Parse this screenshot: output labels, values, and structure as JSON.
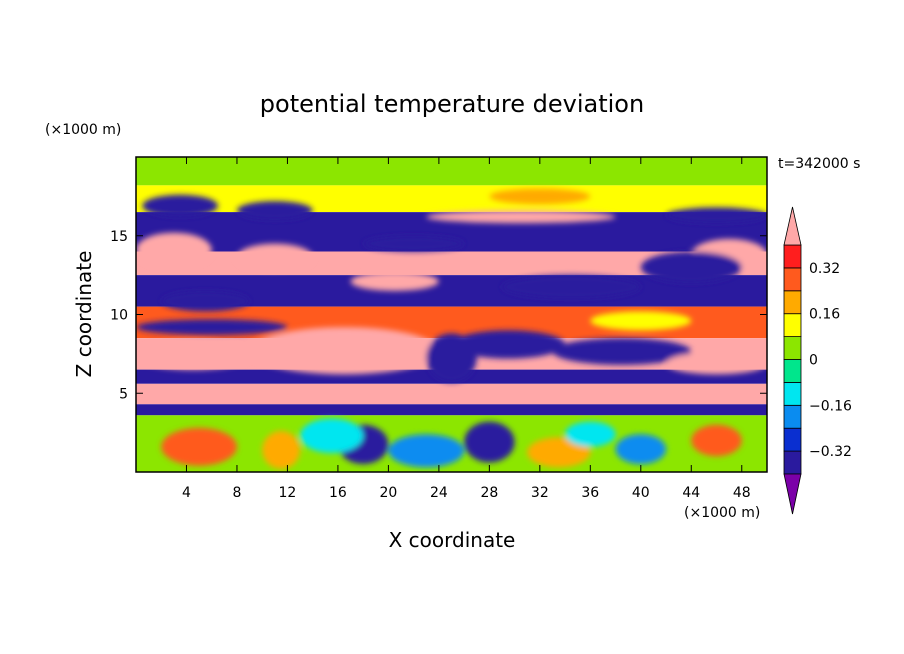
{
  "chart_data": {
    "type": "heatmap",
    "title": "potential temperature deviation",
    "time_label": "t=342000 s",
    "xlabel": "X coordinate",
    "ylabel": "Z coordinate",
    "x_unit": "(×1000 m)",
    "y_unit": "(×1000 m)",
    "xlim": [
      0,
      50
    ],
    "ylim": [
      0,
      20
    ],
    "x_ticks": [
      4,
      8,
      12,
      16,
      20,
      24,
      28,
      32,
      36,
      40,
      44,
      48
    ],
    "y_ticks": [
      5,
      10,
      15
    ],
    "colorbar": {
      "ticks": [
        0.32,
        0.16,
        0,
        -0.16,
        -0.32
      ],
      "tick_labels": [
        "0.32",
        "0.16",
        "0",
        "−0.16",
        "−0.32"
      ],
      "levels": [
        -0.4,
        -0.32,
        -0.24,
        -0.16,
        -0.08,
        0,
        0.08,
        0.16,
        0.24,
        0.32,
        0.4
      ],
      "colors": [
        "#7b00a8",
        "#2a1a9e",
        "#0a2fd0",
        "#0a8cf0",
        "#00e6f0",
        "#00e68c",
        "#8ce600",
        "#ffff00",
        "#ffaa00",
        "#ff5a1e",
        "#ff1e1e",
        "#ffa8a8"
      ],
      "extend": "both"
    },
    "bands": [
      {
        "z": [
          18.2,
          20.0
        ],
        "value": 0.05
      },
      {
        "z": [
          16.5,
          18.2
        ],
        "value": 0.12
      },
      {
        "z": [
          14.0,
          16.5
        ],
        "value": -0.35
      },
      {
        "z": [
          12.5,
          14.0
        ],
        "value": 0.42
      },
      {
        "z": [
          10.5,
          12.5
        ],
        "value": -0.33
      },
      {
        "z": [
          8.5,
          10.5
        ],
        "value": 0.25
      },
      {
        "z": [
          6.5,
          8.5
        ],
        "value": 0.42
      },
      {
        "z": [
          5.6,
          6.5
        ],
        "value": -0.36
      },
      {
        "z": [
          4.3,
          5.6
        ],
        "value": 0.42
      },
      {
        "z": [
          3.6,
          4.3
        ],
        "value": -0.38
      },
      {
        "z": [
          0.0,
          3.6
        ],
        "value": 0.02
      }
    ],
    "patches": [
      {
        "x": [
          0.5,
          6.5
        ],
        "z": [
          16.2,
          17.6
        ],
        "value": -0.36
      },
      {
        "x": [
          8,
          14
        ],
        "z": [
          16.0,
          17.2
        ],
        "value": -0.36
      },
      {
        "x": [
          23,
          38
        ],
        "z": [
          15.8,
          16.6
        ],
        "value": 0.42
      },
      {
        "x": [
          42,
          50
        ],
        "z": [
          15.8,
          16.8
        ],
        "value": -0.36
      },
      {
        "x": [
          28,
          36
        ],
        "z": [
          17.0,
          18.0
        ],
        "value": 0.2
      },
      {
        "x": [
          0,
          6
        ],
        "z": [
          13.0,
          15.2
        ],
        "value": 0.42
      },
      {
        "x": [
          8,
          14
        ],
        "z": [
          12.8,
          14.5
        ],
        "value": 0.42
      },
      {
        "x": [
          44,
          50
        ],
        "z": [
          12.8,
          14.8
        ],
        "value": 0.42
      },
      {
        "x": [
          18,
          26
        ],
        "z": [
          14.0,
          15.0
        ],
        "value": -0.36
      },
      {
        "x": [
          29,
          40
        ],
        "z": [
          11.0,
          12.5
        ],
        "value": -0.36
      },
      {
        "x": [
          40,
          48
        ],
        "z": [
          12.0,
          14.0
        ],
        "value": -0.36
      },
      {
        "x": [
          17,
          24
        ],
        "z": [
          11.5,
          12.7
        ],
        "value": 0.42
      },
      {
        "x": [
          2,
          9
        ],
        "z": [
          10.2,
          11.5
        ],
        "value": -0.36
      },
      {
        "x": [
          9,
          24
        ],
        "z": [
          6.2,
          9.2
        ],
        "value": 0.42
      },
      {
        "x": [
          0,
          9
        ],
        "z": [
          6.5,
          8.3
        ],
        "value": 0.42
      },
      {
        "x": [
          25,
          34
        ],
        "z": [
          7.2,
          9.0
        ],
        "value": -0.36
      },
      {
        "x": [
          33,
          44
        ],
        "z": [
          6.8,
          8.5
        ],
        "value": -0.36
      },
      {
        "x": [
          42,
          50
        ],
        "z": [
          6.2,
          7.6
        ],
        "value": 0.42
      },
      {
        "x": [
          36,
          44
        ],
        "z": [
          9.0,
          10.2
        ],
        "value": 0.12
      },
      {
        "x": [
          0,
          12
        ],
        "z": [
          8.7,
          9.7
        ],
        "value": -0.36
      },
      {
        "x": [
          23,
          27
        ],
        "z": [
          5.7,
          8.8
        ],
        "value": -0.36
      },
      {
        "x": [
          2,
          8
        ],
        "z": [
          0.4,
          2.8
        ],
        "value": 0.28
      },
      {
        "x": [
          10,
          13
        ],
        "z": [
          0.2,
          2.6
        ],
        "value": 0.2
      },
      {
        "x": [
          16,
          20
        ],
        "z": [
          0.5,
          3.0
        ],
        "value": -0.36
      },
      {
        "x": [
          20,
          26
        ],
        "z": [
          0.3,
          2.4
        ],
        "value": -0.18
      },
      {
        "x": [
          26,
          30
        ],
        "z": [
          0.6,
          3.2
        ],
        "value": -0.36
      },
      {
        "x": [
          31,
          36
        ],
        "z": [
          0.3,
          2.2
        ],
        "value": 0.16
      },
      {
        "x": [
          38,
          42
        ],
        "z": [
          0.5,
          2.4
        ],
        "value": -0.22
      },
      {
        "x": [
          44,
          48
        ],
        "z": [
          1.0,
          3.0
        ],
        "value": 0.26
      },
      {
        "x": [
          13,
          18
        ],
        "z": [
          1.2,
          3.4
        ],
        "value": -0.1
      },
      {
        "x": [
          34,
          38
        ],
        "z": [
          1.6,
          3.2
        ],
        "value": -0.12
      }
    ]
  }
}
